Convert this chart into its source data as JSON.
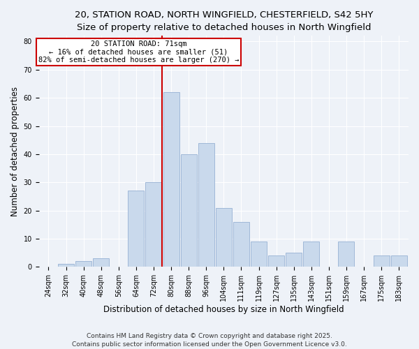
{
  "title_line1": "20, STATION ROAD, NORTH WINGFIELD, CHESTERFIELD, S42 5HY",
  "title_line2": "Size of property relative to detached houses in North Wingfield",
  "xlabel": "Distribution of detached houses by size in North Wingfield",
  "ylabel": "Number of detached properties",
  "categories": [
    "24sqm",
    "32sqm",
    "40sqm",
    "48sqm",
    "56sqm",
    "64sqm",
    "72sqm",
    "80sqm",
    "88sqm",
    "96sqm",
    "104sqm",
    "111sqm",
    "119sqm",
    "127sqm",
    "135sqm",
    "143sqm",
    "151sqm",
    "159sqm",
    "167sqm",
    "175sqm",
    "183sqm"
  ],
  "values": [
    0,
    1,
    2,
    3,
    0,
    27,
    30,
    62,
    40,
    44,
    21,
    16,
    9,
    4,
    5,
    9,
    0,
    9,
    0,
    4,
    4
  ],
  "bar_color": "#c9d9ec",
  "bar_edgecolor": "#a0b8d8",
  "vline_x_index": 6,
  "vline_color": "#cc0000",
  "annotation_text": "20 STATION ROAD: 71sqm\n← 16% of detached houses are smaller (51)\n82% of semi-detached houses are larger (270) →",
  "annotation_box_edgecolor": "#cc0000",
  "annotation_box_facecolor": "#ffffff",
  "ylim": [
    0,
    82
  ],
  "yticks": [
    0,
    10,
    20,
    30,
    40,
    50,
    60,
    70,
    80
  ],
  "footer_line1": "Contains HM Land Registry data © Crown copyright and database right 2025.",
  "footer_line2": "Contains public sector information licensed under the Open Government Licence v3.0.",
  "bg_color": "#eef2f8",
  "plot_bg_color": "#eef2f8",
  "title_fontsize": 9.5,
  "subtitle_fontsize": 8.5,
  "axis_label_fontsize": 8.5,
  "tick_fontsize": 7,
  "footer_fontsize": 6.5,
  "annotation_fontsize": 7.5
}
